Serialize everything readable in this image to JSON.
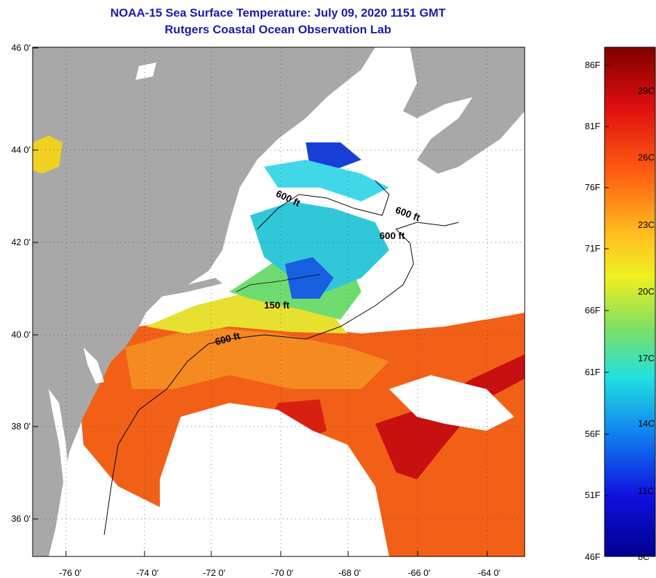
{
  "title": {
    "line1": "NOAA-15 Sea Surface Temperature:  July 09, 2020 1151 GMT",
    "line2": "Rutgers Coastal Ocean Observation Lab"
  },
  "axes": {
    "y_ticks": [
      "46 0'",
      "44 0'",
      "42 0'",
      "40 0'",
      "38 0'",
      "36 0'"
    ],
    "x_ticks": [
      "-76 0'",
      "-74 0'",
      "-72 0'",
      "-70 0'",
      "-68 0'",
      "-66 0'",
      "-64 0'"
    ]
  },
  "contours": {
    "labels": [
      "600 ft",
      "600 ft",
      "600 ft",
      "150 ft",
      "600 ft"
    ]
  },
  "colorbar": {
    "fahrenheit": [
      "86F",
      "81F",
      "76F",
      "71F",
      "66F",
      "61F",
      "56F",
      "51F",
      "46F"
    ],
    "celsius": [
      "29C",
      "26C",
      "23C",
      "20C",
      "17C",
      "14C",
      "11C",
      "8C"
    ]
  },
  "colors": {
    "land": "#a8a8a8",
    "cloud": "#ffffff",
    "warm": "#f05a10",
    "hot": "#c81010",
    "cool": "#20c0e0",
    "cold": "#1040d0",
    "title": "#1a1aa8"
  }
}
